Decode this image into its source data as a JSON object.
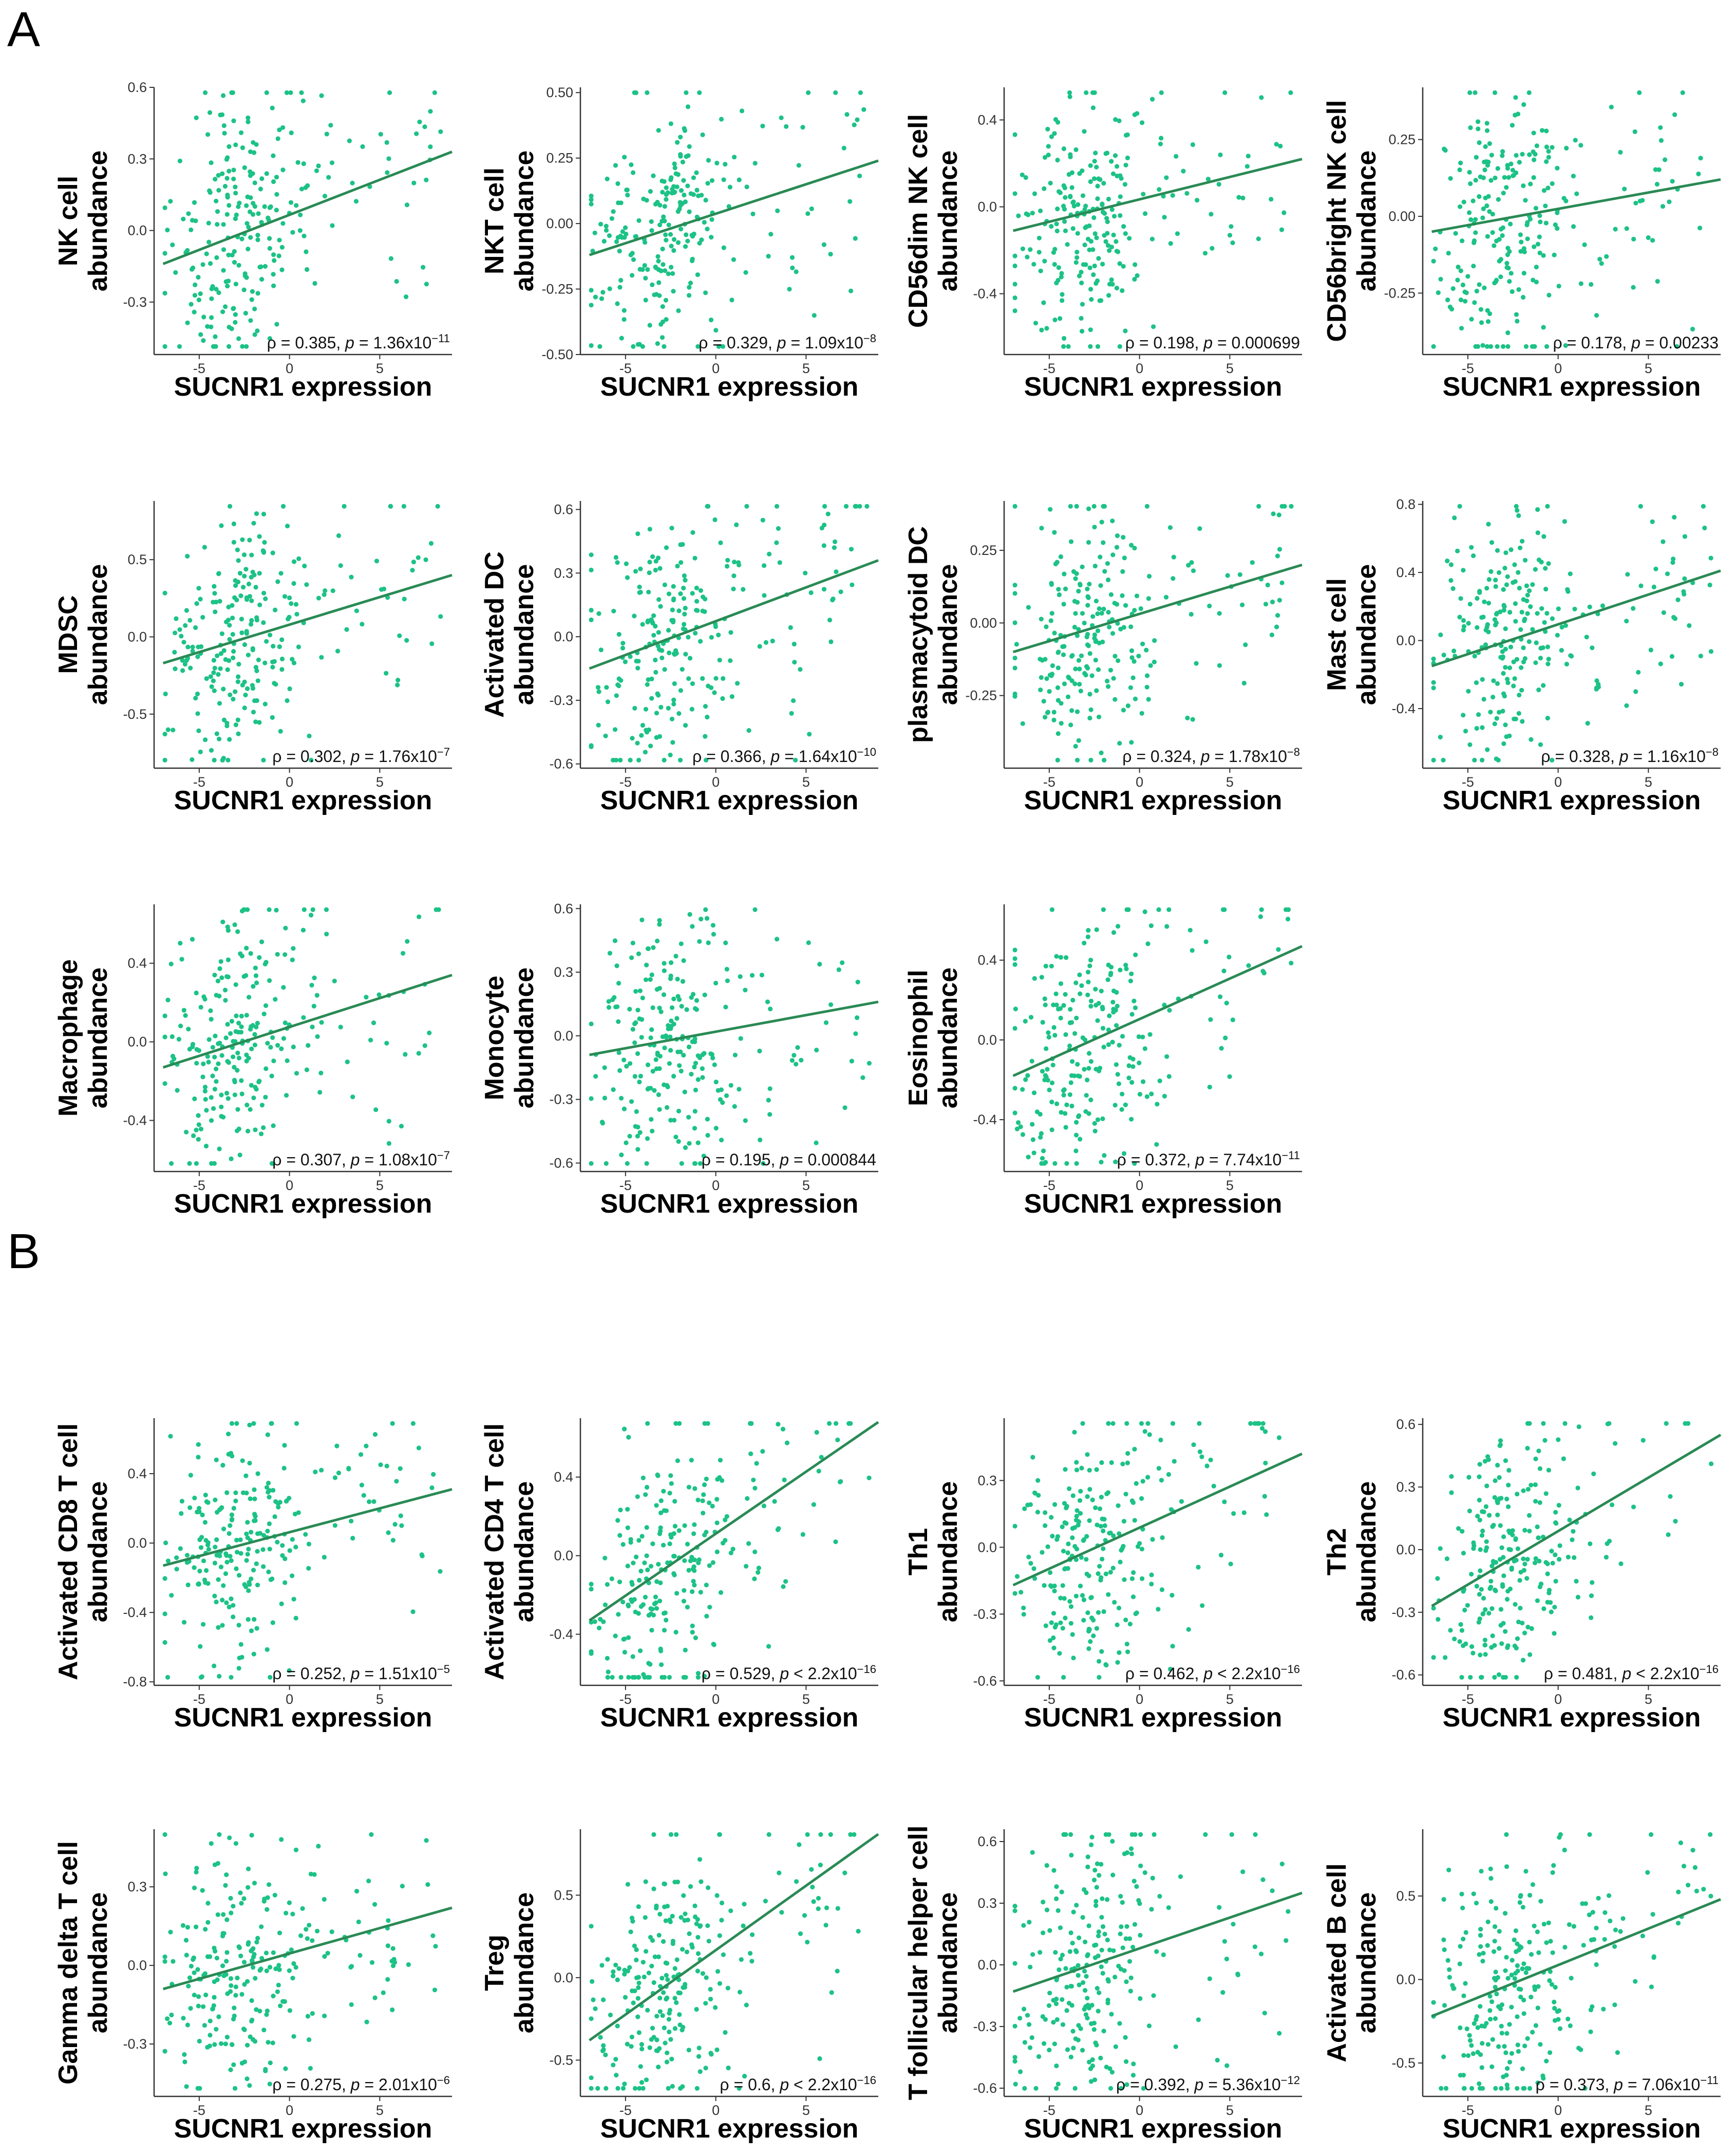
{
  "panel_labels": [
    "A",
    "B"
  ],
  "colors": {
    "point": "#1cc286",
    "fit_line": "#2a8a55",
    "axis": "#333333"
  },
  "chart_data": [
    {
      "type": "scatter",
      "panel": "A",
      "ylabel": [
        "NK cell",
        "abundance"
      ],
      "xlabel": "SUCNR1 expression",
      "xlim": [
        -7.5,
        9
      ],
      "xticks": [
        -5,
        0,
        5
      ],
      "xtick_labels": [
        "-5",
        "0",
        "5"
      ],
      "ylim": [
        -0.52,
        0.6
      ],
      "yticks": [
        0.6,
        0.3,
        0.0,
        -0.3
      ],
      "ytick_labels": [
        "0.6",
        "0.3",
        "0.0",
        "-0.3"
      ],
      "fit": {
        "x0": -7,
        "y0": -0.14,
        "x1": 9,
        "y1": 0.33
      },
      "stat": {
        "rho": "0.385",
        "op": "=",
        "p_mant": "1.36",
        "p_exp": "−11"
      }
    },
    {
      "type": "scatter",
      "panel": "A",
      "ylabel": [
        "NKT cell",
        "abundance"
      ],
      "xlabel": "SUCNR1 expression",
      "xlim": [
        -7.5,
        9
      ],
      "xticks": [
        -5,
        0,
        5
      ],
      "xtick_labels": [
        "-5",
        "0",
        "5"
      ],
      "ylim": [
        -0.5,
        0.52
      ],
      "yticks": [
        0.5,
        0.25,
        0.0,
        -0.25,
        -0.5
      ],
      "ytick_labels": [
        "0.50",
        "0.25",
        "0.00",
        "-0.25",
        "-0.50"
      ],
      "fit": {
        "x0": -7,
        "y0": -0.12,
        "x1": 9,
        "y1": 0.24
      },
      "stat": {
        "rho": "0.329",
        "op": "=",
        "p_mant": "1.09",
        "p_exp": "−8"
      }
    },
    {
      "type": "scatter",
      "panel": "A",
      "ylabel": [
        "CD56dim NK cell",
        "abundance"
      ],
      "xlabel": "SUCNR1 expression",
      "xlim": [
        -7.5,
        9
      ],
      "xticks": [
        -5,
        0,
        5
      ],
      "xtick_labels": [
        "-5",
        "0",
        "5"
      ],
      "ylim": [
        -0.68,
        0.55
      ],
      "yticks": [
        0.4,
        0.0,
        -0.4
      ],
      "ytick_labels": [
        "0.4",
        "0.0",
        "-0.4"
      ],
      "fit": {
        "x0": -7,
        "y0": -0.11,
        "x1": 9,
        "y1": 0.22
      },
      "stat": {
        "rho": "0.198",
        "op": "=",
        "p_plain": "0.000699"
      }
    },
    {
      "type": "scatter",
      "panel": "A",
      "ylabel": [
        "CD56bright NK cell",
        "abundance"
      ],
      "xlabel": "SUCNR1 expression",
      "xlim": [
        -7.5,
        9
      ],
      "xticks": [
        -5,
        0,
        5
      ],
      "xtick_labels": [
        "-5",
        "0",
        "5"
      ],
      "ylim": [
        -0.45,
        0.42
      ],
      "yticks": [
        0.25,
        0.0,
        -0.25
      ],
      "ytick_labels": [
        "0.25",
        "0.00",
        "-0.25"
      ],
      "fit": {
        "x0": -7,
        "y0": -0.05,
        "x1": 9,
        "y1": 0.12
      },
      "stat": {
        "rho": "0.178",
        "op": "=",
        "p_plain": "0.00233"
      }
    },
    {
      "type": "scatter",
      "panel": "A",
      "ylabel": [
        "MDSC",
        "abundance"
      ],
      "xlabel": "SUCNR1 expression",
      "xlim": [
        -7.5,
        9
      ],
      "xticks": [
        -5,
        0,
        5
      ],
      "xtick_labels": [
        "-5",
        "0",
        "5"
      ],
      "ylim": [
        -0.85,
        0.88
      ],
      "yticks": [
        0.5,
        0.0,
        -0.5
      ],
      "ytick_labels": [
        "0.5",
        "0.0",
        "-0.5"
      ],
      "fit": {
        "x0": -7,
        "y0": -0.17,
        "x1": 9,
        "y1": 0.4
      },
      "stat": {
        "rho": "0.302",
        "op": "=",
        "p_mant": "1.76",
        "p_exp": "−7"
      }
    },
    {
      "type": "scatter",
      "panel": "A",
      "ylabel": [
        "Activated DC",
        "abundance"
      ],
      "xlabel": "SUCNR1 expression",
      "xlim": [
        -7.5,
        9
      ],
      "xticks": [
        -5,
        0,
        5
      ],
      "xtick_labels": [
        "-5",
        "0",
        "5"
      ],
      "ylim": [
        -0.62,
        0.64
      ],
      "yticks": [
        0.6,
        0.3,
        0.0,
        -0.3,
        -0.6
      ],
      "ytick_labels": [
        "0.6",
        "0.3",
        "0.0",
        "-0.3",
        "-0.6"
      ],
      "fit": {
        "x0": -7,
        "y0": -0.15,
        "x1": 9,
        "y1": 0.36
      },
      "stat": {
        "rho": "0.366",
        "op": "=",
        "p_mant": "1.64",
        "p_exp": "−10"
      }
    },
    {
      "type": "scatter",
      "panel": "A",
      "ylabel": [
        "plasmacytoid DC",
        "abundance"
      ],
      "xlabel": "SUCNR1 expression",
      "xlim": [
        -7.5,
        9
      ],
      "xticks": [
        -5,
        0,
        5
      ],
      "xtick_labels": [
        "-5",
        "0",
        "5"
      ],
      "ylim": [
        -0.5,
        0.42
      ],
      "yticks": [
        0.25,
        0.0,
        -0.25
      ],
      "ytick_labels": [
        "0.25",
        "0.00",
        "-0.25"
      ],
      "fit": {
        "x0": -7,
        "y0": -0.1,
        "x1": 9,
        "y1": 0.2
      },
      "stat": {
        "rho": "0.324",
        "op": "=",
        "p_mant": "1.78",
        "p_exp": "−8"
      }
    },
    {
      "type": "scatter",
      "panel": "A",
      "ylabel": [
        "Mast cell",
        "abundance"
      ],
      "xlabel": "SUCNR1 expression",
      "xlim": [
        -7.5,
        9
      ],
      "xticks": [
        -5,
        0,
        5
      ],
      "xtick_labels": [
        "-5",
        "0",
        "5"
      ],
      "ylim": [
        -0.75,
        0.82
      ],
      "yticks": [
        0.8,
        0.4,
        0.0,
        -0.4
      ],
      "ytick_labels": [
        "0.8",
        "0.4",
        "0.0",
        "-0.4"
      ],
      "fit": {
        "x0": -7,
        "y0": -0.15,
        "x1": 9,
        "y1": 0.41
      },
      "stat": {
        "rho": "0.328",
        "op": "=",
        "p_mant": "1.16",
        "p_exp": "−8"
      }
    },
    {
      "type": "scatter",
      "panel": "A",
      "ylabel": [
        "Macrophage",
        "abundance"
      ],
      "xlabel": "SUCNR1 expression",
      "xlim": [
        -7.5,
        9
      ],
      "xticks": [
        -5,
        0,
        5
      ],
      "xtick_labels": [
        "-5",
        "0",
        "5"
      ],
      "ylim": [
        -0.66,
        0.7
      ],
      "yticks": [
        0.4,
        0.0,
        -0.4
      ],
      "ytick_labels": [
        "0.4",
        "0.0",
        "-0.4"
      ],
      "fit": {
        "x0": -7,
        "y0": -0.13,
        "x1": 9,
        "y1": 0.34
      },
      "stat": {
        "rho": "0.307",
        "op": "=",
        "p_mant": "1.08",
        "p_exp": "−7"
      }
    },
    {
      "type": "scatter",
      "panel": "A",
      "ylabel": [
        "Monocyte",
        "abundance"
      ],
      "xlabel": "SUCNR1 expression",
      "xlim": [
        -7.5,
        9
      ],
      "xticks": [
        -5,
        0,
        5
      ],
      "xtick_labels": [
        "-5",
        "0",
        "5"
      ],
      "ylim": [
        -0.64,
        0.62
      ],
      "yticks": [
        0.6,
        0.3,
        0.0,
        -0.3,
        -0.6
      ],
      "ytick_labels": [
        "0.6",
        "0.3",
        "0.0",
        "-0.3",
        "-0.6"
      ],
      "fit": {
        "x0": -7,
        "y0": -0.09,
        "x1": 9,
        "y1": 0.16
      },
      "stat": {
        "rho": "0.195",
        "op": "=",
        "p_plain": "0.000844"
      }
    },
    {
      "type": "scatter",
      "panel": "A",
      "ylabel": [
        "Eosinophil",
        "abundance"
      ],
      "xlabel": "SUCNR1 expression",
      "xlim": [
        -7.5,
        9
      ],
      "xticks": [
        -5,
        0,
        5
      ],
      "xtick_labels": [
        "-5",
        "0",
        "5"
      ],
      "ylim": [
        -0.66,
        0.68
      ],
      "yticks": [
        0.4,
        0.0,
        -0.4
      ],
      "ytick_labels": [
        "0.4",
        "0.0",
        "-0.4"
      ],
      "fit": {
        "x0": -7,
        "y0": -0.18,
        "x1": 9,
        "y1": 0.47
      },
      "stat": {
        "rho": "0.372",
        "op": "=",
        "p_mant": "7.74",
        "p_exp": "−11"
      }
    },
    {
      "type": "scatter",
      "panel": "B",
      "ylabel": [
        "Activated CD8 T cell",
        "abundance"
      ],
      "xlabel": "SUCNR1 expression",
      "xlim": [
        -7.5,
        9
      ],
      "xticks": [
        -5,
        0,
        5
      ],
      "xtick_labels": [
        "-5",
        "0",
        "5"
      ],
      "ylim": [
        -0.82,
        0.72
      ],
      "yticks": [
        0.4,
        0.0,
        -0.4,
        -0.8
      ],
      "ytick_labels": [
        "0.4",
        "0.0",
        "-0.4",
        "-0.8"
      ],
      "fit": {
        "x0": -7,
        "y0": -0.13,
        "x1": 9,
        "y1": 0.31
      },
      "stat": {
        "rho": "0.252",
        "op": "=",
        "p_mant": "1.51",
        "p_exp": "−5"
      }
    },
    {
      "type": "scatter",
      "panel": "B",
      "ylabel": [
        "Activated CD4 T cell",
        "abundance"
      ],
      "xlabel": "SUCNR1 expression",
      "xlim": [
        -7.5,
        9
      ],
      "xticks": [
        -5,
        0,
        5
      ],
      "xtick_labels": [
        "-5",
        "0",
        "5"
      ],
      "ylim": [
        -0.66,
        0.7
      ],
      "yticks": [
        0.4,
        0.0,
        -0.4
      ],
      "ytick_labels": [
        "0.4",
        "0.0",
        "-0.4"
      ],
      "fit": {
        "x0": -7,
        "y0": -0.33,
        "x1": 9,
        "y1": 0.68
      },
      "stat": {
        "rho": "0.529",
        "op": "<",
        "p_mant": "2.2",
        "p_exp": "−16"
      }
    },
    {
      "type": "scatter",
      "panel": "B",
      "ylabel": [
        "Th1",
        "abundance"
      ],
      "xlabel": "SUCNR1 expression",
      "xlim": [
        -7.5,
        9
      ],
      "xticks": [
        -5,
        0,
        5
      ],
      "xtick_labels": [
        "-5",
        "0",
        "5"
      ],
      "ylim": [
        -0.62,
        0.58
      ],
      "yticks": [
        0.3,
        0.0,
        -0.3,
        -0.6
      ],
      "ytick_labels": [
        "0.3",
        "0.0",
        "-0.3",
        "-0.6"
      ],
      "fit": {
        "x0": -7,
        "y0": -0.17,
        "x1": 9,
        "y1": 0.42
      },
      "stat": {
        "rho": "0.462",
        "op": "<",
        "p_mant": "2.2",
        "p_exp": "−16"
      }
    },
    {
      "type": "scatter",
      "panel": "B",
      "ylabel": [
        "Th2",
        "abundance"
      ],
      "xlabel": "SUCNR1 expression",
      "xlim": [
        -7.5,
        9
      ],
      "xticks": [
        -5,
        0,
        5
      ],
      "xtick_labels": [
        "-5",
        "0",
        "5"
      ],
      "ylim": [
        -0.65,
        0.63
      ],
      "yticks": [
        0.6,
        0.3,
        0.0,
        -0.3,
        -0.6
      ],
      "ytick_labels": [
        "0.6",
        "0.3",
        "0.0",
        "-0.3",
        "-0.6"
      ],
      "fit": {
        "x0": -7,
        "y0": -0.27,
        "x1": 9,
        "y1": 0.55
      },
      "stat": {
        "rho": "0.481",
        "op": "<",
        "p_mant": "2.2",
        "p_exp": "−16"
      }
    },
    {
      "type": "scatter",
      "panel": "B",
      "ylabel": [
        "Gamma delta T cell",
        "abundance"
      ],
      "xlabel": "SUCNR1 expression",
      "xlim": [
        -7.5,
        9
      ],
      "xticks": [
        -5,
        0,
        5
      ],
      "xtick_labels": [
        "-5",
        "0",
        "5"
      ],
      "ylim": [
        -0.5,
        0.52
      ],
      "yticks": [
        0.3,
        0.0,
        -0.3
      ],
      "ytick_labels": [
        "0.3",
        "0.0",
        "-0.3"
      ],
      "fit": {
        "x0": -7,
        "y0": -0.09,
        "x1": 9,
        "y1": 0.22
      },
      "stat": {
        "rho": "0.275",
        "op": "=",
        "p_mant": "2.01",
        "p_exp": "−6"
      }
    },
    {
      "type": "scatter",
      "panel": "B",
      "ylabel": [
        "Treg",
        "abundance"
      ],
      "xlabel": "SUCNR1 expression",
      "xlim": [
        -7.5,
        9
      ],
      "xticks": [
        -5,
        0,
        5
      ],
      "xtick_labels": [
        "-5",
        "0",
        "5"
      ],
      "ylim": [
        -0.72,
        0.9
      ],
      "yticks": [
        0.5,
        0.0,
        -0.5
      ],
      "ytick_labels": [
        "0.5",
        "0.0",
        "-0.5"
      ],
      "fit": {
        "x0": -7,
        "y0": -0.38,
        "x1": 9,
        "y1": 0.87
      },
      "stat": {
        "rho": "0.6",
        "op": "<",
        "p_mant": "2.2",
        "p_exp": "−16"
      }
    },
    {
      "type": "scatter",
      "panel": "B",
      "ylabel": [
        "T follicular helper cell",
        "abundance"
      ],
      "xlabel": "SUCNR1 expression",
      "xlim": [
        -7.5,
        9
      ],
      "xticks": [
        -5,
        0,
        5
      ],
      "xtick_labels": [
        "-5",
        "0",
        "5"
      ],
      "ylim": [
        -0.64,
        0.66
      ],
      "yticks": [
        0.6,
        0.3,
        0.0,
        -0.3,
        -0.6
      ],
      "ytick_labels": [
        "0.6",
        "0.3",
        "0.0",
        "-0.3",
        "-0.6"
      ],
      "fit": {
        "x0": -7,
        "y0": -0.13,
        "x1": 9,
        "y1": 0.35
      },
      "stat": {
        "rho": "0.392",
        "op": "=",
        "p_mant": "5.36",
        "p_exp": "−12"
      }
    },
    {
      "type": "scatter",
      "panel": "B",
      "ylabel": [
        "Activated B cell",
        "abundance"
      ],
      "xlabel": "SUCNR1 expression",
      "xlim": [
        -7.5,
        9
      ],
      "xticks": [
        -5,
        0,
        5
      ],
      "xtick_labels": [
        "-5",
        "0",
        "5"
      ],
      "ylim": [
        -0.7,
        0.9
      ],
      "yticks": [
        0.5,
        0.0,
        -0.5
      ],
      "ytick_labels": [
        "0.5",
        "0.0",
        "-0.5"
      ],
      "fit": {
        "x0": -7,
        "y0": -0.22,
        "x1": 9,
        "y1": 0.48
      },
      "stat": {
        "rho": "0.373",
        "op": "=",
        "p_mant": "7.06",
        "p_exp": "−11"
      }
    }
  ]
}
